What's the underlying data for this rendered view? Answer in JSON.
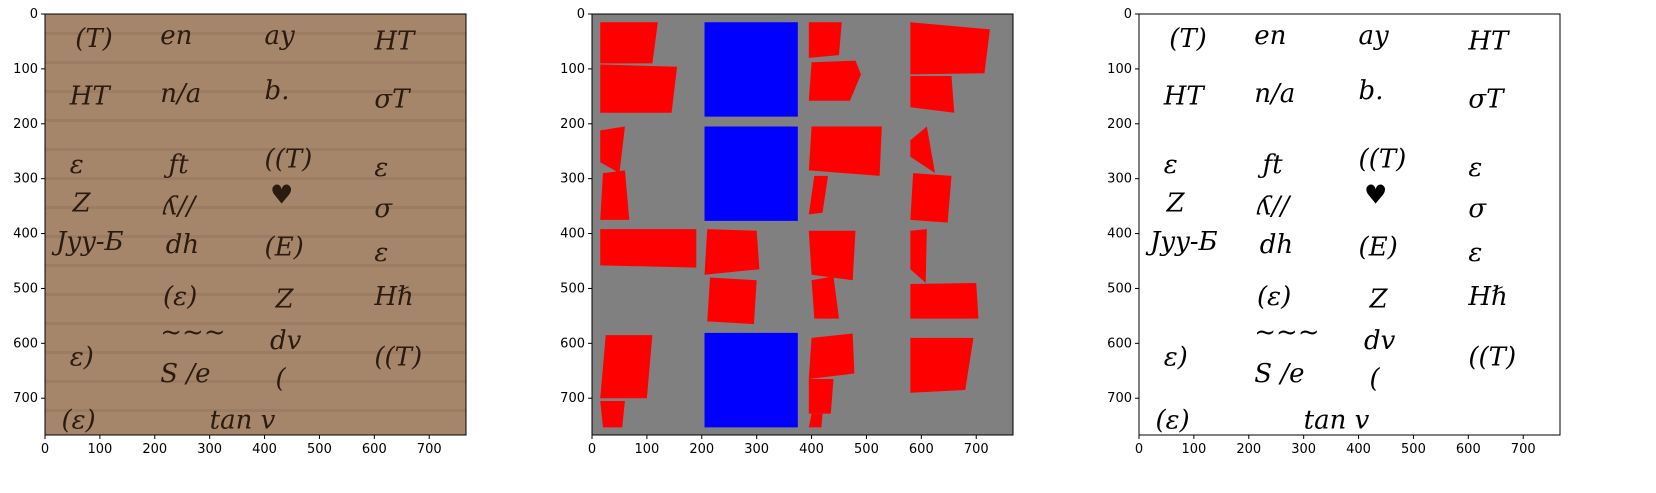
{
  "panels": [
    {
      "name": "manuscript-image",
      "x_ticks": [
        "0",
        "100",
        "200",
        "300",
        "400",
        "500",
        "600",
        "700"
      ],
      "y_ticks": [
        "0",
        "100",
        "200",
        "300",
        "400",
        "500",
        "600",
        "700"
      ],
      "colors": {
        "background": "#a6866a",
        "ink": "#2a1a10"
      },
      "handwriting": [
        {
          "text": "(T)",
          "x": 55,
          "y": 60
        },
        {
          "text": "en",
          "x": 210,
          "y": 55
        },
        {
          "text": "ay",
          "x": 400,
          "y": 55
        },
        {
          "text": "HT",
          "x": 600,
          "y": 65
        },
        {
          "text": "HT",
          "x": 45,
          "y": 165
        },
        {
          "text": "n/a",
          "x": 210,
          "y": 160
        },
        {
          "text": "b.",
          "x": 400,
          "y": 155
        },
        {
          "text": "σT",
          "x": 600,
          "y": 170
        },
        {
          "text": "ε",
          "x": 45,
          "y": 290
        },
        {
          "text": "ƒt",
          "x": 225,
          "y": 290
        },
        {
          "text": "((T)",
          "x": 400,
          "y": 280
        },
        {
          "text": "ε",
          "x": 600,
          "y": 295
        },
        {
          "text": "Z",
          "x": 50,
          "y": 360
        },
        {
          "text": "ʎ//",
          "x": 215,
          "y": 365
        },
        {
          "text": "♥",
          "x": 410,
          "y": 345
        },
        {
          "text": "σ",
          "x": 600,
          "y": 370
        },
        {
          "text": "Jyy-Ƃ",
          "x": 20,
          "y": 430
        },
        {
          "text": "dh",
          "x": 220,
          "y": 435
        },
        {
          "text": "(Ε)",
          "x": 400,
          "y": 440
        },
        {
          "text": "ε",
          "x": 600,
          "y": 450
        },
        {
          "text": "(ε)",
          "x": 215,
          "y": 530
        },
        {
          "text": "Z",
          "x": 420,
          "y": 535
        },
        {
          "text": "Hℏ",
          "x": 600,
          "y": 530
        },
        {
          "text": "ε)",
          "x": 45,
          "y": 640
        },
        {
          "text": "~~~",
          "x": 210,
          "y": 595
        },
        {
          "text": "dv",
          "x": 410,
          "y": 610
        },
        {
          "text": "((T)",
          "x": 600,
          "y": 640
        },
        {
          "text": "S /e",
          "x": 210,
          "y": 670
        },
        {
          "text": "(",
          "x": 420,
          "y": 680
        },
        {
          "text": "(ε)",
          "x": 30,
          "y": 755
        },
        {
          "text": "tan v",
          "x": 300,
          "y": 755
        }
      ]
    },
    {
      "name": "region-mask",
      "x_ticks": [
        "0",
        "100",
        "200",
        "300",
        "400",
        "500",
        "600",
        "700"
      ],
      "y_ticks": [
        "0",
        "100",
        "200",
        "300",
        "400",
        "500",
        "600",
        "700"
      ],
      "colors": {
        "background": "#808080",
        "red": "#ff0000",
        "blue": "#0000ff"
      },
      "blue_regions": [
        [
          [
            205,
            15
          ],
          [
            375,
            15
          ],
          [
            375,
            187
          ],
          [
            205,
            187
          ]
        ],
        [
          [
            205,
            205
          ],
          [
            375,
            205
          ],
          [
            375,
            377
          ],
          [
            205,
            377
          ]
        ],
        [
          [
            205,
            581
          ],
          [
            375,
            581
          ],
          [
            375,
            753
          ],
          [
            205,
            753
          ]
        ]
      ],
      "red_regions": [
        [
          [
            15,
            15
          ],
          [
            120,
            15
          ],
          [
            110,
            90
          ],
          [
            15,
            90
          ]
        ],
        [
          [
            15,
            92
          ],
          [
            155,
            96
          ],
          [
            145,
            180
          ],
          [
            15,
            180
          ]
        ],
        [
          [
            15,
            212
          ],
          [
            60,
            205
          ],
          [
            50,
            290
          ],
          [
            15,
            270
          ]
        ],
        [
          [
            20,
            290
          ],
          [
            60,
            285
          ],
          [
            68,
            375
          ],
          [
            15,
            375
          ]
        ],
        [
          [
            15,
            392
          ],
          [
            190,
            392
          ],
          [
            190,
            462
          ],
          [
            15,
            458
          ]
        ],
        [
          [
            25,
            585
          ],
          [
            110,
            585
          ],
          [
            100,
            700
          ],
          [
            15,
            700
          ]
        ],
        [
          [
            15,
            705
          ],
          [
            60,
            705
          ],
          [
            55,
            753
          ],
          [
            20,
            753
          ]
        ],
        [
          [
            210,
            392
          ],
          [
            300,
            395
          ],
          [
            305,
            465
          ],
          [
            205,
            475
          ]
        ],
        [
          [
            215,
            480
          ],
          [
            300,
            485
          ],
          [
            295,
            565
          ],
          [
            210,
            560
          ]
        ],
        [
          [
            395,
            15
          ],
          [
            455,
            15
          ],
          [
            450,
            75
          ],
          [
            395,
            80
          ]
        ],
        [
          [
            400,
            88
          ],
          [
            480,
            85
          ],
          [
            490,
            110
          ],
          [
            470,
            158
          ],
          [
            395,
            158
          ]
        ],
        [
          [
            400,
            205
          ],
          [
            528,
            205
          ],
          [
            524,
            295
          ],
          [
            395,
            285
          ]
        ],
        [
          [
            405,
            295
          ],
          [
            430,
            295
          ],
          [
            420,
            362
          ],
          [
            395,
            365
          ]
        ],
        [
          [
            395,
            395
          ],
          [
            480,
            395
          ],
          [
            475,
            485
          ],
          [
            400,
            475
          ]
        ],
        [
          [
            400,
            485
          ],
          [
            440,
            478
          ],
          [
            450,
            555
          ],
          [
            405,
            555
          ]
        ],
        [
          [
            400,
            590
          ],
          [
            475,
            582
          ],
          [
            478,
            655
          ],
          [
            395,
            665
          ]
        ],
        [
          [
            395,
            665
          ],
          [
            440,
            665
          ],
          [
            435,
            728
          ],
          [
            395,
            728
          ]
        ],
        [
          [
            400,
            728
          ],
          [
            420,
            728
          ],
          [
            418,
            753
          ],
          [
            395,
            753
          ]
        ],
        [
          [
            580,
            15
          ],
          [
            725,
            28
          ],
          [
            715,
            108
          ],
          [
            580,
            110
          ]
        ],
        [
          [
            580,
            113
          ],
          [
            655,
            113
          ],
          [
            660,
            180
          ],
          [
            580,
            170
          ]
        ],
        [
          [
            580,
            230
          ],
          [
            610,
            205
          ],
          [
            625,
            290
          ],
          [
            580,
            260
          ]
        ],
        [
          [
            585,
            290
          ],
          [
            655,
            295
          ],
          [
            648,
            380
          ],
          [
            580,
            375
          ]
        ],
        [
          [
            580,
            395
          ],
          [
            610,
            392
          ],
          [
            608,
            490
          ],
          [
            580,
            465
          ]
        ],
        [
          [
            580,
            492
          ],
          [
            700,
            490
          ],
          [
            704,
            555
          ],
          [
            580,
            555
          ]
        ],
        [
          [
            580,
            590
          ],
          [
            695,
            590
          ],
          [
            680,
            685
          ],
          [
            580,
            690
          ]
        ]
      ]
    },
    {
      "name": "binarized-image",
      "x_ticks": [
        "0",
        "100",
        "200",
        "300",
        "400",
        "500",
        "600",
        "700"
      ],
      "y_ticks": [
        "0",
        "100",
        "200",
        "300",
        "400",
        "500",
        "600",
        "700"
      ],
      "colors": {
        "background": "#ffffff",
        "ink": "#000000"
      },
      "handwriting": [
        {
          "text": "(T)",
          "x": 55,
          "y": 60
        },
        {
          "text": "en",
          "x": 210,
          "y": 55
        },
        {
          "text": "ay",
          "x": 400,
          "y": 55
        },
        {
          "text": "HT",
          "x": 600,
          "y": 65
        },
        {
          "text": "HT",
          "x": 45,
          "y": 165
        },
        {
          "text": "n/a",
          "x": 210,
          "y": 160
        },
        {
          "text": "b.",
          "x": 400,
          "y": 155
        },
        {
          "text": "σT",
          "x": 600,
          "y": 170
        },
        {
          "text": "ε",
          "x": 45,
          "y": 290
        },
        {
          "text": "ƒt",
          "x": 225,
          "y": 290
        },
        {
          "text": "((T)",
          "x": 400,
          "y": 280
        },
        {
          "text": "ε",
          "x": 600,
          "y": 295
        },
        {
          "text": "Z",
          "x": 50,
          "y": 360
        },
        {
          "text": "ʎ//",
          "x": 215,
          "y": 365
        },
        {
          "text": "♥",
          "x": 410,
          "y": 345
        },
        {
          "text": "σ",
          "x": 600,
          "y": 370
        },
        {
          "text": "Jyy-Ƃ",
          "x": 20,
          "y": 430
        },
        {
          "text": "dh",
          "x": 220,
          "y": 435
        },
        {
          "text": "(Ε)",
          "x": 400,
          "y": 440
        },
        {
          "text": "ε",
          "x": 600,
          "y": 450
        },
        {
          "text": "(ε)",
          "x": 215,
          "y": 530
        },
        {
          "text": "Z",
          "x": 420,
          "y": 535
        },
        {
          "text": "Hℏ",
          "x": 600,
          "y": 530
        },
        {
          "text": "ε)",
          "x": 45,
          "y": 640
        },
        {
          "text": "~~~",
          "x": 210,
          "y": 595
        },
        {
          "text": "dv",
          "x": 410,
          "y": 610
        },
        {
          "text": "((T)",
          "x": 600,
          "y": 640
        },
        {
          "text": "S /e",
          "x": 210,
          "y": 670
        },
        {
          "text": "(",
          "x": 420,
          "y": 680
        },
        {
          "text": "(ε)",
          "x": 30,
          "y": 755
        },
        {
          "text": "tan v",
          "x": 300,
          "y": 755
        }
      ]
    }
  ]
}
